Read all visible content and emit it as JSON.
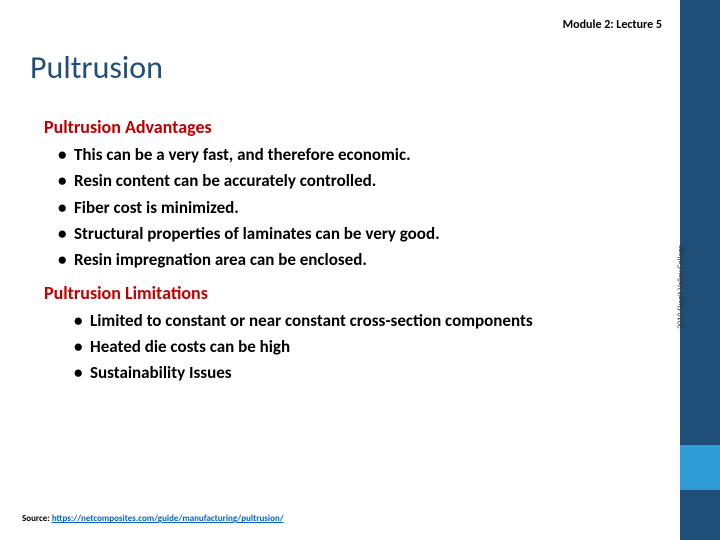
{
  "header": {
    "module_label": "Module 2: Lecture 5"
  },
  "title": "Pultrusion",
  "sections": [
    {
      "heading": "Pultrusion Advantages",
      "indented": false,
      "items": [
        "This can be a very fast, and therefore economic.",
        "Resin content can be accurately controlled.",
        "Fiber cost is minimized.",
        "Structural properties of laminates can be very good.",
        "Resin impregnation area can be enclosed."
      ]
    },
    {
      "heading": "Pultrusion Limitations",
      "indented": true,
      "items": [
        "Limited to constant or near constant cross-section components",
        "Heated die costs can be high",
        "Sustainability Issues"
      ]
    }
  ],
  "source": {
    "prefix": "Source: ",
    "url_text": "https://netcomposites.com/guide/manufacturing/pultrusion/"
  },
  "vertical_label": "2019 Skagit Valley College",
  "colors": {
    "sidebar": "#1f4e79",
    "accent": "#2e9cd6",
    "heading": "#c00000",
    "title": "#1f4e79",
    "link": "#0563c1"
  }
}
